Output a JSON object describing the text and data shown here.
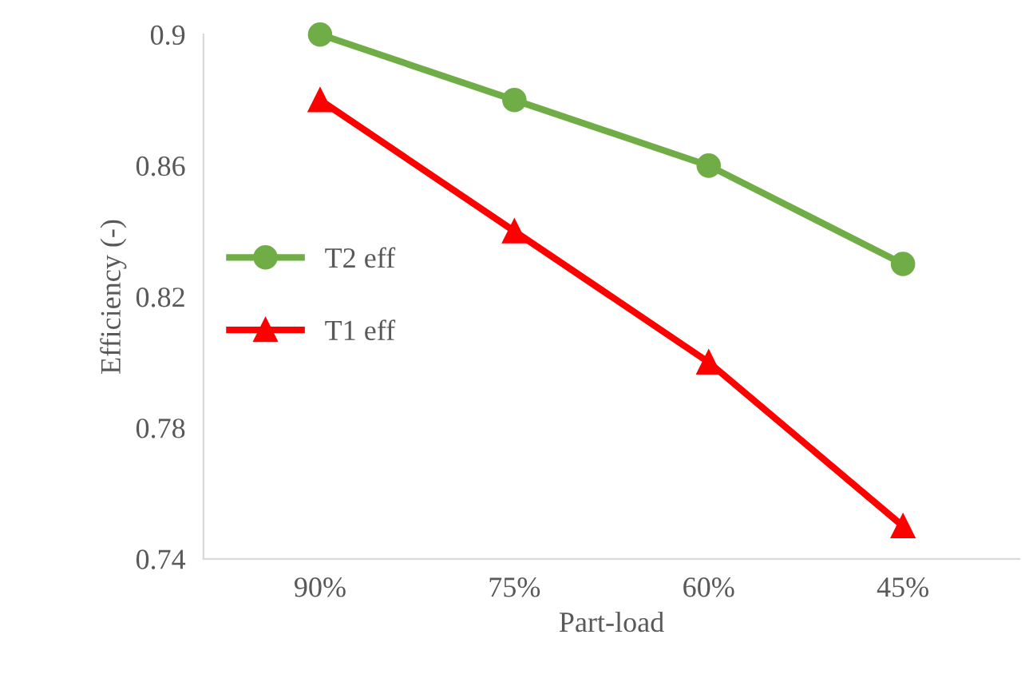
{
  "chart_data": {
    "type": "line",
    "xlabel": "Part-load",
    "ylabel": "Efficiency (-)",
    "categories": [
      "90%",
      "75%",
      "60%",
      "45%"
    ],
    "series": [
      {
        "name": "T2 eff",
        "color": "#70ad47",
        "marker": "circle",
        "values": [
          0.9,
          0.88,
          0.86,
          0.83
        ]
      },
      {
        "name": "T1 eff",
        "color": "#ff0000",
        "marker": "triangle",
        "values": [
          0.88,
          0.84,
          0.8,
          0.75
        ]
      }
    ],
    "ylim": [
      0.74,
      0.9
    ],
    "yticks": [
      0.74,
      0.78,
      0.82,
      0.86,
      0.9
    ],
    "grid": false,
    "legend": "center left",
    "line_style": "solid"
  }
}
